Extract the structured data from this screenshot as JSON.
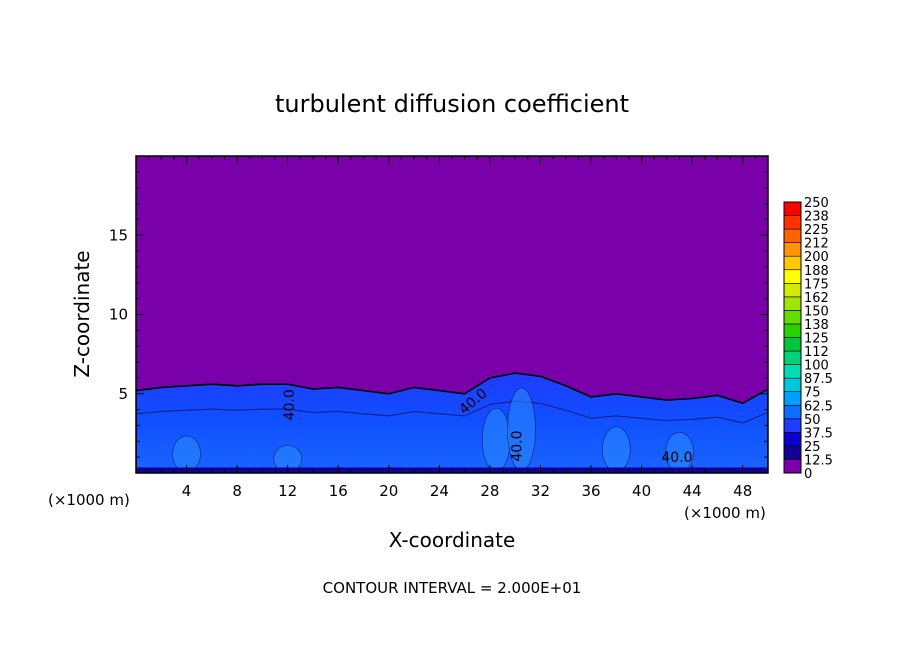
{
  "chart_data": {
    "type": "heatmap",
    "title": "turbulent diffusion coefficient",
    "xlabel": "X-coordinate",
    "ylabel": "Z-coordinate",
    "x_unit_label": "(×1000 m)",
    "xlim": [
      0,
      50
    ],
    "ylim": [
      0,
      20
    ],
    "x_ticks": [
      4,
      8,
      12,
      16,
      20,
      24,
      28,
      32,
      36,
      40,
      44,
      48
    ],
    "y_ticks": [
      5,
      10,
      15
    ],
    "footer": "CONTOUR INTERVAL = 2.000E+01",
    "contour_labels": [
      {
        "text": "40.0",
        "x": 12.5,
        "z": 4.3,
        "angle": -90
      },
      {
        "text": "40.0",
        "x": 26.9,
        "z": 4.3,
        "angle": -40
      },
      {
        "text": "40.0",
        "x": 30.5,
        "z": 1.7,
        "angle": -90
      },
      {
        "text": "40.0",
        "x": 42.8,
        "z": 0.7,
        "angle": 0
      }
    ],
    "turbulent_layer_top_z": [
      {
        "x": 0,
        "z": 5.2
      },
      {
        "x": 2,
        "z": 5.4
      },
      {
        "x": 4,
        "z": 5.5
      },
      {
        "x": 6,
        "z": 5.6
      },
      {
        "x": 8,
        "z": 5.5
      },
      {
        "x": 10,
        "z": 5.6
      },
      {
        "x": 12,
        "z": 5.6
      },
      {
        "x": 14,
        "z": 5.3
      },
      {
        "x": 16,
        "z": 5.4
      },
      {
        "x": 18,
        "z": 5.2
      },
      {
        "x": 20,
        "z": 5.0
      },
      {
        "x": 22,
        "z": 5.4
      },
      {
        "x": 24,
        "z": 5.2
      },
      {
        "x": 26,
        "z": 5.0
      },
      {
        "x": 28,
        "z": 6.0
      },
      {
        "x": 30,
        "z": 6.3
      },
      {
        "x": 32,
        "z": 6.1
      },
      {
        "x": 34,
        "z": 5.5
      },
      {
        "x": 36,
        "z": 4.8
      },
      {
        "x": 38,
        "z": 5.0
      },
      {
        "x": 40,
        "z": 4.8
      },
      {
        "x": 42,
        "z": 4.6
      },
      {
        "x": 44,
        "z": 4.7
      },
      {
        "x": 46,
        "z": 4.9
      },
      {
        "x": 48,
        "z": 4.4
      },
      {
        "x": 50,
        "z": 5.3
      }
    ],
    "colorbar": {
      "levels": [
        "0",
        "12.5",
        "25",
        "37.5",
        "50",
        "62.5",
        "75",
        "87.5",
        "100",
        "112",
        "125",
        "138",
        "150",
        "162",
        "175",
        "188",
        "200",
        "212",
        "225",
        "238",
        "250"
      ],
      "colors": [
        "#7a00aa",
        "#140096",
        "#0a00d2",
        "#1e3cff",
        "#0f6eff",
        "#00a0ff",
        "#00c8dc",
        "#00dcb4",
        "#00d278",
        "#00c83c",
        "#28d200",
        "#64dc00",
        "#a0e600",
        "#d2eb00",
        "#ffff00",
        "#ffc800",
        "#ff9600",
        "#ff6400",
        "#ff3200",
        "#ff0000",
        "#ff8c8c"
      ]
    }
  }
}
